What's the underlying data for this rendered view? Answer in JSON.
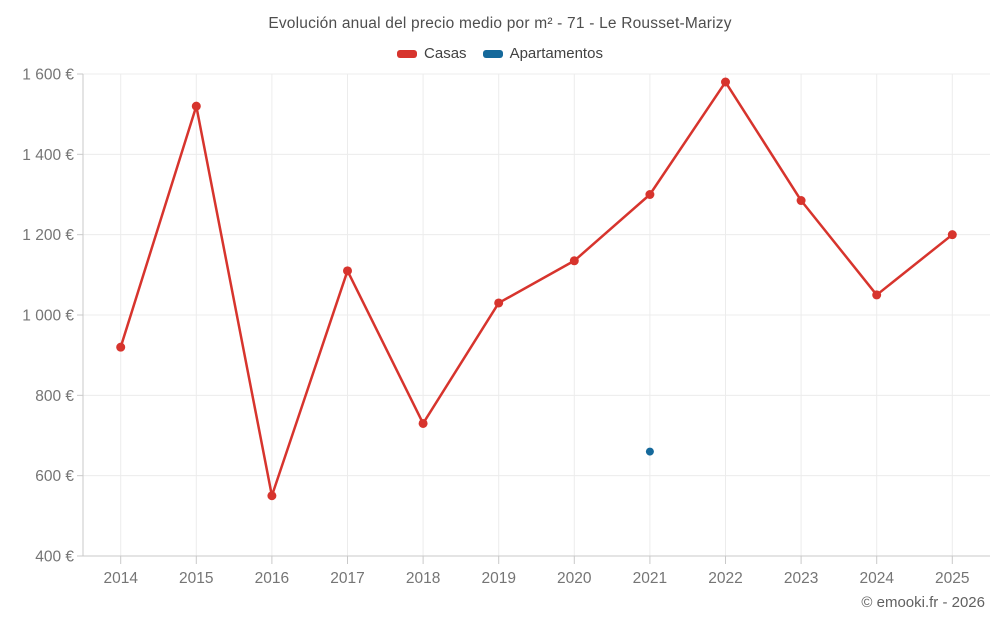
{
  "title": "Evolución anual del precio medio por m² - 71 - Le Rousset-Marizy",
  "legend": [
    {
      "label": "Casas",
      "color": "#d7342d"
    },
    {
      "label": "Apartamentos",
      "color": "#15699b"
    }
  ],
  "footer": "© emooki.fr - 2026",
  "colors": {
    "casas": "#d7342d",
    "apartamentos": "#15699b",
    "grid": "#ececec",
    "axis": "#c9c9c9",
    "axis_text": "#757575",
    "title_text": "#4e4e4e"
  },
  "chart_data": {
    "type": "line",
    "title": "Evolución anual del precio medio por m² - 71 - Le Rousset-Marizy",
    "categories": [
      "2014",
      "2015",
      "2016",
      "2017",
      "2018",
      "2019",
      "2020",
      "2021",
      "2022",
      "2023",
      "2024",
      "2025"
    ],
    "series": [
      {
        "name": "Casas",
        "color": "#d7342d",
        "values": [
          920,
          1520,
          550,
          1110,
          730,
          1030,
          1135,
          1300,
          1580,
          1285,
          1050,
          1200
        ]
      },
      {
        "name": "Apartamentos",
        "color": "#15699b",
        "values": [
          null,
          null,
          null,
          null,
          null,
          null,
          null,
          660,
          null,
          null,
          null,
          null
        ]
      }
    ],
    "ylim": [
      400,
      1600
    ],
    "yticks": [
      {
        "value": 400,
        "label": "400 €"
      },
      {
        "value": 600,
        "label": "600 €"
      },
      {
        "value": 800,
        "label": "800 €"
      },
      {
        "value": 1000,
        "label": "1 000 €"
      },
      {
        "value": 1200,
        "label": "1 200 €"
      },
      {
        "value": 1400,
        "label": "1 400 €"
      },
      {
        "value": 1600,
        "label": "1 600 €"
      }
    ],
    "unit": "€",
    "grid": true,
    "legend_position": "top"
  }
}
